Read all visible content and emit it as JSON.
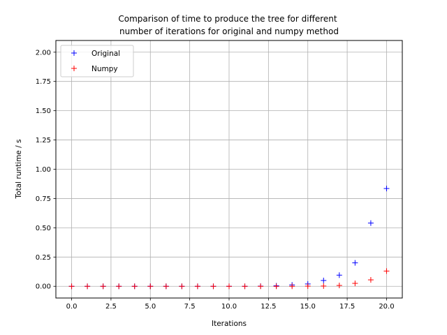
{
  "chart_data": {
    "type": "scatter",
    "title_lines": [
      "Comparison of time to produce the tree for different",
      "number of iterations for original and numpy method"
    ],
    "xlabel": "Iterations",
    "ylabel": "Total runtime / s",
    "xlim": [
      -1.0,
      21.0
    ],
    "ylim": [
      -0.1,
      2.1
    ],
    "xticks": [
      0.0,
      2.5,
      5.0,
      7.5,
      10.0,
      12.5,
      15.0,
      17.5,
      20.0
    ],
    "xtick_labels": [
      "0.0",
      "2.5",
      "5.0",
      "7.5",
      "10.0",
      "12.5",
      "15.0",
      "17.5",
      "20.0"
    ],
    "yticks": [
      0.0,
      0.25,
      0.5,
      0.75,
      1.0,
      1.25,
      1.5,
      1.75,
      2.0
    ],
    "ytick_labels": [
      "0.00",
      "0.25",
      "0.50",
      "0.75",
      "1.00",
      "1.25",
      "1.50",
      "1.75",
      "2.00"
    ],
    "grid": true,
    "legend_position": "top-left",
    "marker": "+",
    "series": [
      {
        "name": "Original",
        "color": "#0000ff",
        "x": [
          0,
          1,
          2,
          3,
          4,
          5,
          6,
          7,
          8,
          9,
          10,
          11,
          12,
          13,
          14,
          15,
          16,
          17,
          18,
          19,
          20
        ],
        "y": [
          0,
          0,
          0,
          0,
          0,
          0,
          0,
          0,
          0,
          0,
          0,
          0,
          0.001,
          0.004,
          0.012,
          0.02,
          0.05,
          0.095,
          0.2,
          0.54,
          0.835
        ]
      },
      {
        "name": "Numpy",
        "color": "#ff0000",
        "x": [
          0,
          1,
          2,
          3,
          4,
          5,
          6,
          7,
          8,
          9,
          10,
          11,
          12,
          13,
          14,
          15,
          16,
          17,
          18,
          19,
          20
        ],
        "y": [
          0,
          0,
          0,
          0,
          0,
          0,
          0,
          0,
          0,
          0,
          0,
          0,
          0,
          0,
          0,
          0.001,
          0.002,
          0.007,
          0.025,
          0.055,
          0.13
        ]
      }
    ]
  }
}
